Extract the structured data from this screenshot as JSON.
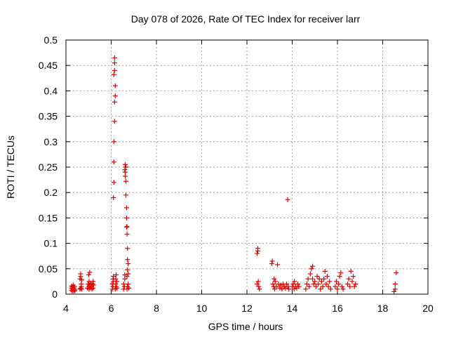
{
  "chart_data": {
    "type": "scatter",
    "title": "Day 078 of 2026, Rate Of TEC Index for receiver larr",
    "xlabel": "GPS time / hours",
    "ylabel": "ROTI / TECUs",
    "xlim": [
      4,
      20
    ],
    "ylim": [
      0,
      0.5
    ],
    "xticks": [
      4,
      6,
      8,
      10,
      12,
      14,
      16,
      18,
      20
    ],
    "xtick_labels": [
      "4",
      "6",
      "8",
      "10",
      "12",
      "14",
      "16",
      "18",
      "20"
    ],
    "yticks": [
      0,
      0.05,
      0.1,
      0.15,
      0.2,
      0.25,
      0.3,
      0.35,
      0.4,
      0.45,
      0.5
    ],
    "ytick_labels": [
      "0",
      "0.05",
      "0.1",
      "0.15",
      "0.2",
      "0.25",
      "0.3",
      "0.35",
      "0.4",
      "0.45",
      "0.5"
    ],
    "grid": true,
    "marker": "plus",
    "marker_color": "#e00000",
    "series": [
      {
        "name": "ROTI",
        "points": [
          [
            4.25,
            0.008
          ],
          [
            4.25,
            0.012
          ],
          [
            4.25,
            0.016
          ],
          [
            4.28,
            0.006
          ],
          [
            4.3,
            0.01
          ],
          [
            4.3,
            0.014
          ],
          [
            4.32,
            0.018
          ],
          [
            4.35,
            0.006
          ],
          [
            4.35,
            0.012
          ],
          [
            4.38,
            0.009
          ],
          [
            4.38,
            0.015
          ],
          [
            4.4,
            0.007
          ],
          [
            4.62,
            0.01
          ],
          [
            4.62,
            0.03
          ],
          [
            4.65,
            0.012
          ],
          [
            4.65,
            0.035
          ],
          [
            4.65,
            0.04
          ],
          [
            4.68,
            0.015
          ],
          [
            4.68,
            0.02
          ],
          [
            4.7,
            0.01
          ],
          [
            4.7,
            0.028
          ],
          [
            4.95,
            0.012
          ],
          [
            4.98,
            0.02
          ],
          [
            5.0,
            0.015
          ],
          [
            5.0,
            0.038
          ],
          [
            5.02,
            0.01
          ],
          [
            5.02,
            0.025
          ],
          [
            5.05,
            0.043
          ],
          [
            5.05,
            0.018
          ],
          [
            5.08,
            0.012
          ],
          [
            5.1,
            0.022
          ],
          [
            5.12,
            0.015
          ],
          [
            5.15,
            0.01
          ],
          [
            5.18,
            0.02
          ],
          [
            5.2,
            0.025
          ],
          [
            5.2,
            0.012
          ],
          [
            5.22,
            0.018
          ],
          [
            6.05,
            0.01
          ],
          [
            6.05,
            0.02
          ],
          [
            6.08,
            0.015
          ],
          [
            6.08,
            0.03
          ],
          [
            6.1,
            0.025
          ],
          [
            6.1,
            0.035
          ],
          [
            6.1,
            0.19
          ],
          [
            6.12,
            0.22
          ],
          [
            6.12,
            0.26
          ],
          [
            6.12,
            0.3
          ],
          [
            6.15,
            0.34
          ],
          [
            6.15,
            0.378
          ],
          [
            6.18,
            0.39
          ],
          [
            6.18,
            0.41
          ],
          [
            6.12,
            0.432
          ],
          [
            6.15,
            0.44
          ],
          [
            6.15,
            0.455
          ],
          [
            6.15,
            0.465
          ],
          [
            6.18,
            0.01
          ],
          [
            6.2,
            0.02
          ],
          [
            6.2,
            0.03
          ],
          [
            6.22,
            0.038
          ],
          [
            6.22,
            0.015
          ],
          [
            6.25,
            0.012
          ],
          [
            6.25,
            0.025
          ],
          [
            6.55,
            0.01
          ],
          [
            6.55,
            0.02
          ],
          [
            6.58,
            0.015
          ],
          [
            6.6,
            0.03
          ],
          [
            6.6,
            0.038
          ],
          [
            6.6,
            0.245
          ],
          [
            6.62,
            0.255
          ],
          [
            6.62,
            0.24
          ],
          [
            6.62,
            0.232
          ],
          [
            6.65,
            0.25
          ],
          [
            6.65,
            0.222
          ],
          [
            6.65,
            0.195
          ],
          [
            6.68,
            0.17
          ],
          [
            6.68,
            0.15
          ],
          [
            6.7,
            0.133
          ],
          [
            6.7,
            0.118
          ],
          [
            6.68,
            0.132
          ],
          [
            6.72,
            0.09
          ],
          [
            6.72,
            0.068
          ],
          [
            6.75,
            0.06
          ],
          [
            6.72,
            0.048
          ],
          [
            6.75,
            0.04
          ],
          [
            6.7,
            0.035
          ],
          [
            6.75,
            0.02
          ],
          [
            6.72,
            0.015
          ],
          [
            6.7,
            0.01
          ],
          [
            6.78,
            0.012
          ],
          [
            12.45,
            0.08
          ],
          [
            12.48,
            0.09
          ],
          [
            12.48,
            0.085
          ],
          [
            12.45,
            0.02
          ],
          [
            12.5,
            0.025
          ],
          [
            12.52,
            0.015
          ],
          [
            12.55,
            0.01
          ],
          [
            13.1,
            0.06
          ],
          [
            13.12,
            0.065
          ],
          [
            13.15,
            0.02
          ],
          [
            13.18,
            0.015
          ],
          [
            13.2,
            0.03
          ],
          [
            13.22,
            0.01
          ],
          [
            13.25,
            0.025
          ],
          [
            13.3,
            0.015
          ],
          [
            13.35,
            0.058
          ],
          [
            13.4,
            0.02
          ],
          [
            13.45,
            0.012
          ],
          [
            13.5,
            0.018
          ],
          [
            13.55,
            0.01
          ],
          [
            13.6,
            0.02
          ],
          [
            13.65,
            0.015
          ],
          [
            13.7,
            0.012
          ],
          [
            13.75,
            0.02
          ],
          [
            13.8,
            0.186
          ],
          [
            13.82,
            0.015
          ],
          [
            13.85,
            0.01
          ],
          [
            14.0,
            0.015
          ],
          [
            14.05,
            0.02
          ],
          [
            14.08,
            0.01
          ],
          [
            14.1,
            0.025
          ],
          [
            14.15,
            0.015
          ],
          [
            14.2,
            0.012
          ],
          [
            14.25,
            0.02
          ],
          [
            14.3,
            0.015
          ],
          [
            14.6,
            0.01
          ],
          [
            14.65,
            0.02
          ],
          [
            14.7,
            0.03
          ],
          [
            14.75,
            0.015
          ],
          [
            14.8,
            0.04
          ],
          [
            14.85,
            0.05
          ],
          [
            14.9,
            0.055
          ],
          [
            14.9,
            0.03
          ],
          [
            14.95,
            0.02
          ],
          [
            15.0,
            0.025
          ],
          [
            15.05,
            0.015
          ],
          [
            15.1,
            0.035
          ],
          [
            15.15,
            0.02
          ],
          [
            15.2,
            0.03
          ],
          [
            15.25,
            0.01
          ],
          [
            15.3,
            0.025
          ],
          [
            15.35,
            0.015
          ],
          [
            15.4,
            0.03
          ],
          [
            15.45,
            0.045
          ],
          [
            15.5,
            0.02
          ],
          [
            15.55,
            0.035
          ],
          [
            15.6,
            0.015
          ],
          [
            15.65,
            0.025
          ],
          [
            15.7,
            0.01
          ],
          [
            15.9,
            0.015
          ],
          [
            15.95,
            0.025
          ],
          [
            16.0,
            0.01
          ],
          [
            16.05,
            0.02
          ],
          [
            16.1,
            0.035
          ],
          [
            16.15,
            0.042
          ],
          [
            16.2,
            0.015
          ],
          [
            16.25,
            0.01
          ],
          [
            16.45,
            0.02
          ],
          [
            16.5,
            0.03
          ],
          [
            16.55,
            0.015
          ],
          [
            16.6,
            0.045
          ],
          [
            16.65,
            0.025
          ],
          [
            16.7,
            0.035
          ],
          [
            16.75,
            0.015
          ],
          [
            16.8,
            0.02
          ],
          [
            18.5,
            0.005
          ],
          [
            18.55,
            0.01
          ],
          [
            18.55,
            0.02
          ],
          [
            18.6,
            0.042
          ]
        ]
      }
    ]
  }
}
